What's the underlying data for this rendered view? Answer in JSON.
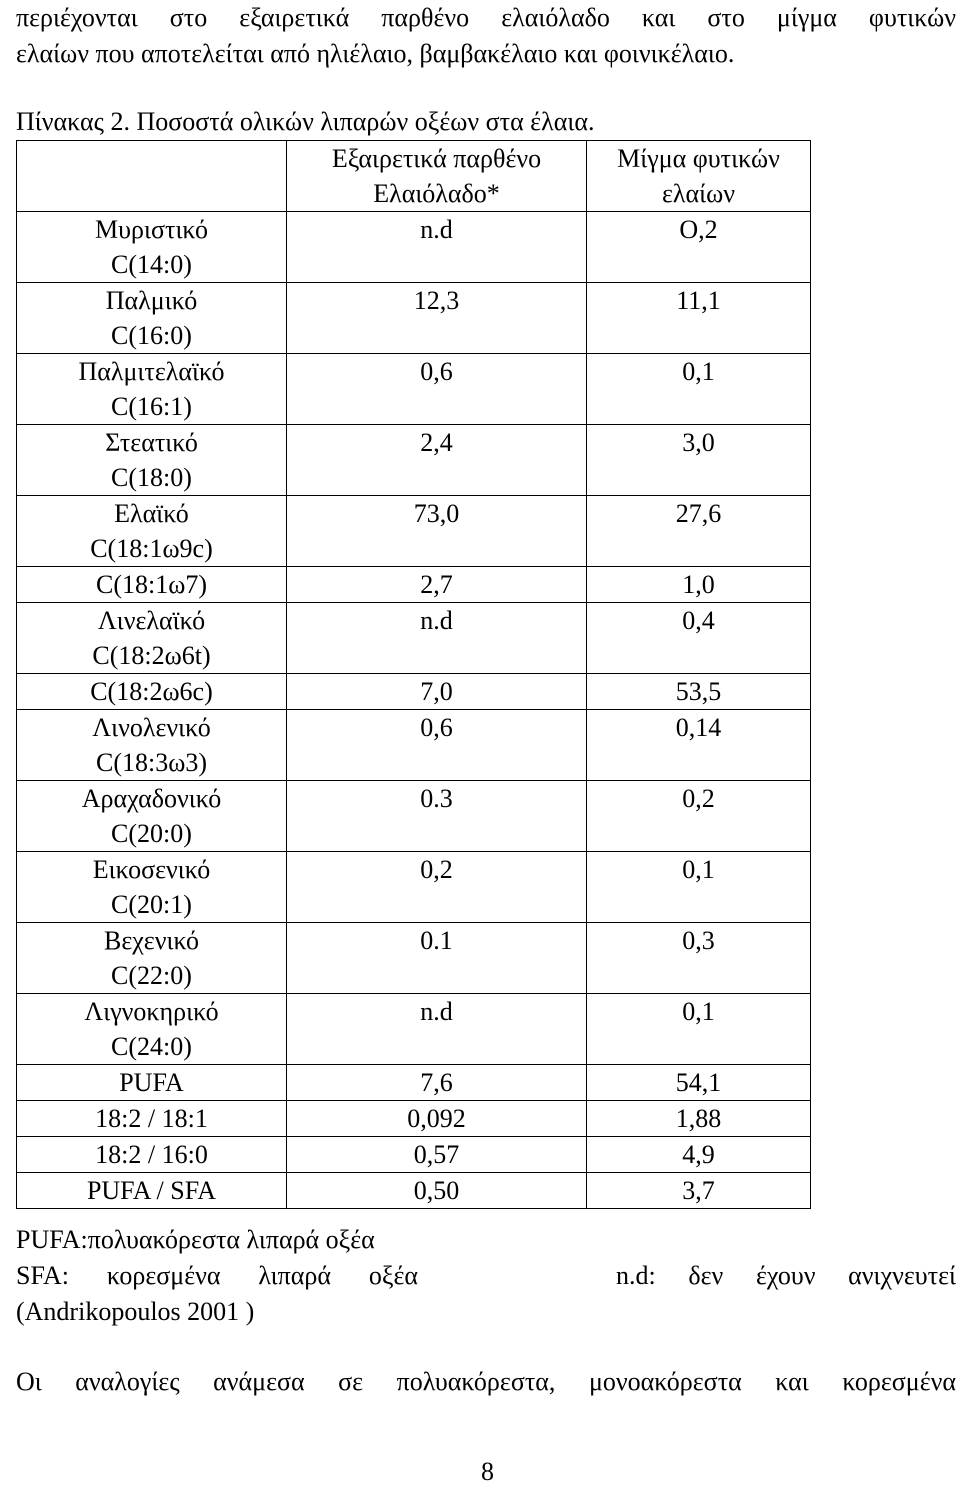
{
  "intro": {
    "lines": [
      "περιέχονται στο εξαιρετικά παρθένο ελαιόλαδο και στο μίγμα φυτικών",
      "ελαίων που αποτελείται από ηλιέλαιο, βαμβακέλαιο και φοινικέλαιο."
    ]
  },
  "table": {
    "caption": "Πίνακας 2. Ποσοστά ολικών λιπαρών οξέων στα έλαια.",
    "header": [
      [],
      [
        "Εξαιρετικά παρθένο",
        "Ελαιόλαδο*"
      ],
      [
        "Μίγμα φυτικών",
        "ελαίων"
      ]
    ],
    "rows": [
      [
        [
          "Μυριστικό",
          "C(14:0)"
        ],
        "n.d",
        "O,2"
      ],
      [
        [
          "Παλμικό",
          "C(16:0)"
        ],
        "12,3",
        "11,1"
      ],
      [
        [
          "Παλμιτελαϊκό",
          "C(16:1)"
        ],
        "0,6",
        "0,1"
      ],
      [
        [
          "Στεατικό",
          "C(18:0)"
        ],
        "2,4",
        "3,0"
      ],
      [
        [
          "Ελαϊκό",
          "C(18:1ω9c)"
        ],
        "73,0",
        "27,6"
      ],
      [
        [
          "C(18:1ω7)"
        ],
        "2,7",
        "1,0"
      ],
      [
        [
          "Λινελαϊκό",
          "C(18:2ω6t)"
        ],
        "n.d",
        "0,4"
      ],
      [
        [
          "C(18:2ω6c)"
        ],
        "7,0",
        "53,5"
      ],
      [
        [
          "Λινολενικό",
          "C(18:3ω3)"
        ],
        "0,6",
        "0,14"
      ],
      [
        [
          "Αραχαδονικό",
          "C(20:0)"
        ],
        "0.3",
        "0,2"
      ],
      [
        [
          "Εικοσενικό",
          "C(20:1)"
        ],
        "0,2",
        "0,1"
      ],
      [
        [
          "Βεχενικό",
          "C(22:0)"
        ],
        "0.1",
        "0,3"
      ],
      [
        [
          "Λιγνοκηρικό",
          "C(24:0)"
        ],
        "n.d",
        "0,1"
      ],
      [
        [
          "PUFA"
        ],
        "7,6",
        "54,1"
      ],
      [
        [
          "18:2 / 18:1"
        ],
        "0,092",
        "1,88"
      ],
      [
        [
          "18:2 / 16:0"
        ],
        "0,57",
        "4,9"
      ],
      [
        [
          "PUFA / SFA"
        ],
        "0,50",
        "3,7"
      ]
    ]
  },
  "notes": {
    "pufa": "PUFA:πολυακόρεστα λιπαρά οξέα",
    "sfa": "SFA: κορεσμένα λιπαρά οξέα",
    "nd": "n.d: δεν έχουν ανιχνευτεί",
    "source": "(Andrikopoulos 2001 )"
  },
  "closing": "Οι αναλογίες ανάμεσα σε πολυακόρεστα, μονοακόρεστα και κορεσμένα",
  "page_number": "8"
}
